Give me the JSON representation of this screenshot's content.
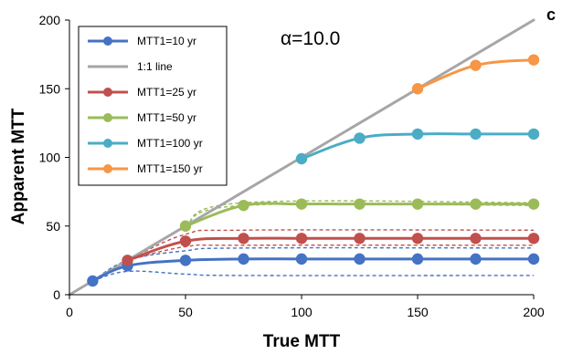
{
  "chart_data": {
    "type": "line",
    "title": "",
    "xlabel": "True MTT",
    "ylabel": "Apparent MTT",
    "xlim": [
      0,
      200
    ],
    "ylim": [
      0,
      200
    ],
    "xticks": [
      0,
      50,
      100,
      150,
      200
    ],
    "yticks": [
      0,
      50,
      100,
      150,
      200
    ],
    "grid": false,
    "legend_position": "top-left",
    "annotation": "α=10.0",
    "panel_label": "c",
    "series": [
      {
        "name": "MTT1=10 yr",
        "color": "#4472C4",
        "markers": true,
        "x": [
          10,
          25,
          50,
          75,
          100,
          125,
          150,
          175,
          200
        ],
        "y": [
          10,
          21,
          25,
          26,
          26,
          26,
          26,
          26,
          26
        ]
      },
      {
        "name": "1:1 line",
        "color": "#A6A6A6",
        "markers": false,
        "x": [
          0,
          200
        ],
        "y": [
          0,
          200
        ]
      },
      {
        "name": "MTT1=25 yr",
        "color": "#C0504D",
        "markers": true,
        "x": [
          25,
          50,
          75,
          100,
          125,
          150,
          175,
          200
        ],
        "y": [
          25,
          39,
          41,
          41,
          41,
          41,
          41,
          41
        ]
      },
      {
        "name": "MTT1=50 yr",
        "color": "#9BBB59",
        "markers": true,
        "x": [
          50,
          75,
          100,
          125,
          150,
          175,
          200
        ],
        "y": [
          50,
          65,
          66,
          66,
          66,
          66,
          66
        ]
      },
      {
        "name": "MTT1=100 yr",
        "color": "#4BACC6",
        "markers": true,
        "x": [
          100,
          125,
          150,
          175,
          200
        ],
        "y": [
          99,
          114,
          117,
          117,
          117
        ]
      },
      {
        "name": "MTT1=150 yr",
        "color": "#F79646",
        "markers": true,
        "x": [
          150,
          175,
          200
        ],
        "y": [
          150,
          167,
          171
        ]
      }
    ],
    "dashed_bands": [
      {
        "color": "#4472C4",
        "x": [
          10,
          25,
          50,
          75,
          200
        ],
        "y": [
          10,
          17,
          15,
          14,
          14
        ]
      },
      {
        "color": "#4472C4",
        "x": [
          10,
          25,
          50,
          75,
          200
        ],
        "y": [
          10,
          25,
          32,
          34,
          34
        ]
      },
      {
        "color": "#C0504D",
        "x": [
          25,
          50,
          75,
          200
        ],
        "y": [
          25,
          35,
          36,
          36
        ]
      },
      {
        "color": "#C0504D",
        "x": [
          25,
          50,
          75,
          200
        ],
        "y": [
          25,
          44,
          47,
          47
        ]
      },
      {
        "color": "#9BBB59",
        "x": [
          50,
          75,
          200
        ],
        "y": [
          50,
          65,
          65
        ]
      },
      {
        "color": "#9BBB59",
        "x": [
          50,
          75,
          200
        ],
        "y": [
          50,
          67,
          67
        ]
      }
    ]
  }
}
